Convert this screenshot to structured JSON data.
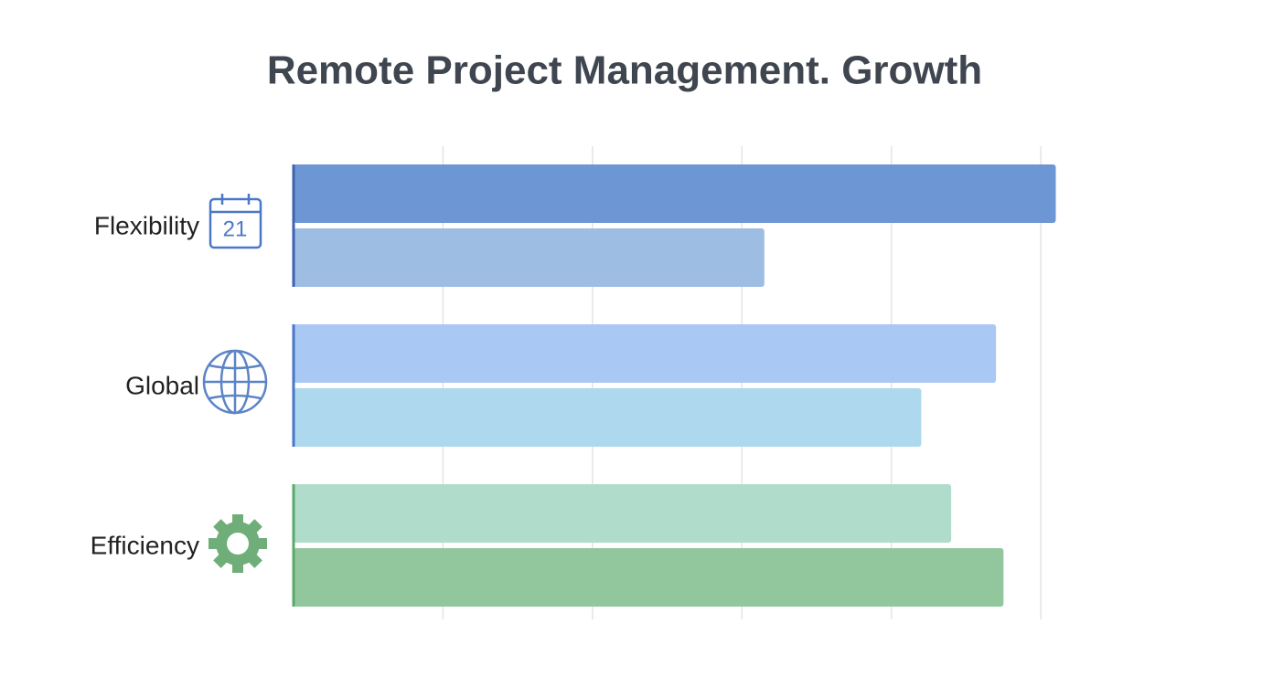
{
  "chart_data": {
    "type": "hbar",
    "title": "Remote Project Management. Growth",
    "categories": [
      "Flexibility",
      "Global",
      "Efficiency"
    ],
    "series": [
      {
        "colors": [
          "#6d96d4",
          "#a9c8f4",
          "#b0dccb"
        ],
        "values": [
          102,
          94,
          88
        ]
      },
      {
        "colors": [
          "#9dbde3",
          "#add8ed",
          "#92c79d"
        ],
        "values": [
          63,
          84,
          95
        ]
      }
    ],
    "axis_colors": [
      "#3f63b3",
      "#4a78c8",
      "#5aaa6a"
    ],
    "xlim": [
      0,
      105
    ],
    "xticks": [
      20,
      40,
      60,
      80,
      100
    ],
    "grid": true,
    "calendar_icon_text": "21"
  }
}
